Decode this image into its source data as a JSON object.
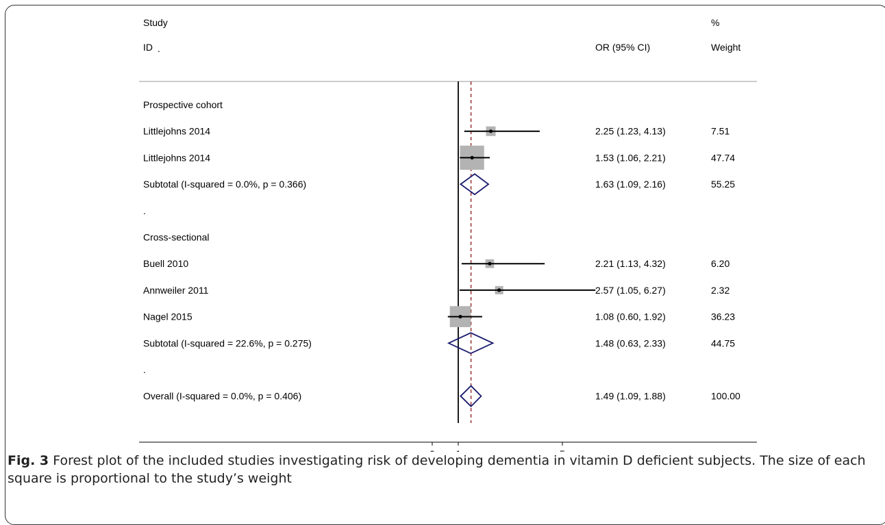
{
  "chart_data": {
    "type": "forest",
    "header": {
      "study_line1": "Study",
      "study_line2": "ID",
      "study_dot": ".",
      "ci_label": "OR (95% CI)",
      "weight_line1": "%",
      "weight_line2": "Weight"
    },
    "xaxis": {
      "ticks": [
        "0",
        "1",
        "5"
      ],
      "tick_values": [
        0,
        1,
        5
      ],
      "reference_line": 1,
      "pooled_estimate_line": 1.49
    },
    "rows": [
      {
        "kind": "group",
        "label": "Prospective cohort"
      },
      {
        "kind": "study",
        "label": "Littlejohns 2014",
        "or": 2.25,
        "lo": 1.23,
        "hi": 4.13,
        "ci_text": "2.25 (1.23, 4.13)",
        "weight": "7.51"
      },
      {
        "kind": "study",
        "label": "Littlejohns 2014",
        "or": 1.53,
        "lo": 1.06,
        "hi": 2.21,
        "ci_text": "1.53 (1.06, 2.21)",
        "weight": "47.74"
      },
      {
        "kind": "subtotal",
        "label": "Subtotal  (I-squared = 0.0%, p = 0.366)",
        "or": 1.63,
        "lo": 1.09,
        "hi": 2.16,
        "ci_text": "1.63 (1.09, 2.16)",
        "weight": "55.25"
      },
      {
        "kind": "blank",
        "label": "."
      },
      {
        "kind": "group",
        "label": "Cross-sectional"
      },
      {
        "kind": "study",
        "label": "Buell 2010",
        "or": 2.21,
        "lo": 1.13,
        "hi": 4.32,
        "ci_text": "2.21 (1.13, 4.32)",
        "weight": "6.20"
      },
      {
        "kind": "study",
        "label": "Annweiler 2011",
        "or": 2.57,
        "lo": 1.05,
        "hi": 6.27,
        "ci_text": "2.57 (1.05, 6.27)",
        "weight": "2.32"
      },
      {
        "kind": "study",
        "label": "Nagel 2015",
        "or": 1.08,
        "lo": 0.6,
        "hi": 1.92,
        "ci_text": "1.08 (0.60, 1.92)",
        "weight": "36.23"
      },
      {
        "kind": "subtotal",
        "label": "Subtotal  (I-squared = 22.6%, p = 0.275)",
        "or": 1.48,
        "lo": 0.63,
        "hi": 2.33,
        "ci_text": "1.48 (0.63, 2.33)",
        "weight": "44.75"
      },
      {
        "kind": "blank",
        "label": "."
      },
      {
        "kind": "overall",
        "label": "Overall  (I-squared = 0.0%, p = 0.406)",
        "or": 1.49,
        "lo": 1.09,
        "hi": 1.88,
        "ci_text": "1.49 (1.09, 1.88)",
        "weight": "100.00"
      }
    ],
    "colors": {
      "diamond": "#1a1a6e",
      "dashed_line": "#8b1a1a",
      "box": "#b3b3b3",
      "line": "#000000"
    }
  },
  "caption": {
    "fig_label": "Fig. 3",
    "text": " Forest plot of the included studies investigating risk of developing dementia in vitamin D deficient subjects. The size of each square is proportional to the study’s weight"
  }
}
